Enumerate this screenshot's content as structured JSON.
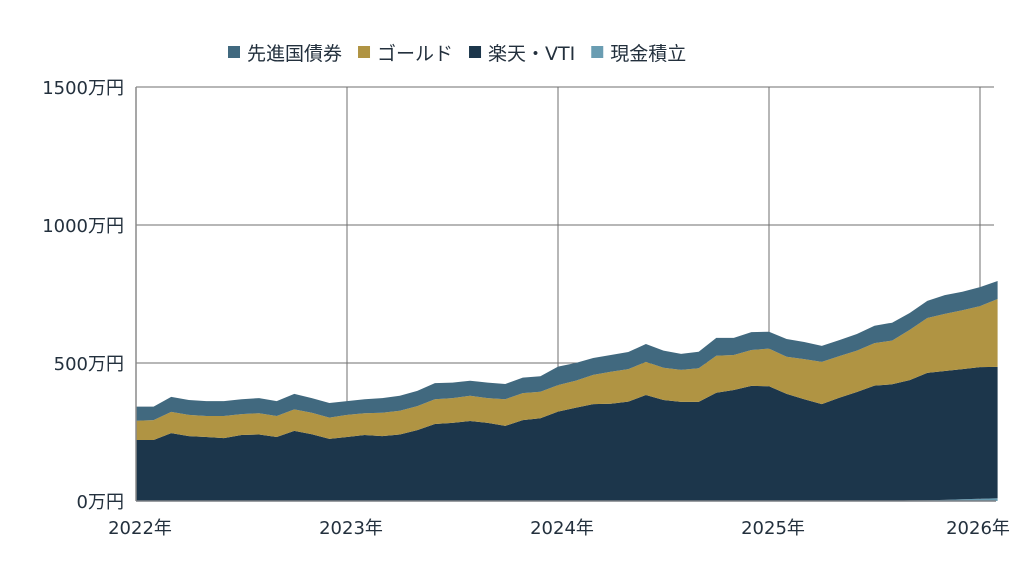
{
  "chart_data": {
    "type": "area",
    "stacked": true,
    "title": "",
    "xlabel": "",
    "ylabel": "",
    "x_ticks": [
      "2022年",
      "2023年",
      "2024年",
      "2025年",
      "2026年"
    ],
    "y_ticks": [
      "0万円",
      "500万円",
      "1000万円",
      "1500万円"
    ],
    "y_tick_values": [
      0,
      500,
      1000,
      1500
    ],
    "ylim": [
      0,
      1500
    ],
    "xlim": [
      "2022-01",
      "2026-01"
    ],
    "grid": true,
    "legend_position": "top",
    "start_month": "2022-01",
    "x_frequency": "monthly",
    "series": [
      {
        "name": "現金積立",
        "color": "#6a9db2",
        "values": [
          1,
          1,
          1,
          1,
          1,
          1,
          1,
          1,
          1,
          1,
          1,
          1,
          1,
          1,
          1,
          1,
          1,
          1,
          1,
          1,
          1,
          1,
          1,
          1,
          1,
          1,
          1,
          1,
          1,
          1,
          1,
          1,
          1,
          1,
          1,
          1,
          1,
          1,
          1,
          1,
          1,
          1,
          1,
          1,
          2,
          3,
          4,
          6,
          8,
          10
        ]
      },
      {
        "name": "楽天・VTI",
        "color": "#1c364b",
        "values": [
          220,
          220,
          245,
          234,
          231,
          227,
          238,
          240,
          231,
          253,
          241,
          224,
          231,
          238,
          234,
          240,
          256,
          278,
          282,
          289,
          282,
          271,
          292,
          299,
          323,
          337,
          350,
          351,
          359,
          383,
          365,
          358,
          358,
          391,
          401,
          416,
          415,
          387,
          368,
          350,
          373,
          394,
          417,
          422,
          436,
          461,
          467,
          472,
          477,
          476
        ]
      },
      {
        "name": "ゴールド",
        "color": "#b09443",
        "values": [
          70,
          72,
          77,
          77,
          76,
          80,
          76,
          77,
          76,
          78,
          78,
          77,
          80,
          79,
          85,
          86,
          87,
          90,
          90,
          91,
          90,
          97,
          98,
          96,
          96,
          98,
          106,
          116,
          118,
          120,
          117,
          116,
          122,
          134,
          127,
          130,
          136,
          135,
          145,
          153,
          151,
          150,
          154,
          158,
          182,
          199,
          207,
          213,
          221,
          246
        ]
      },
      {
        "name": "先進国債券",
        "color": "#41697f",
        "values": [
          51,
          49,
          54,
          54,
          54,
          54,
          54,
          55,
          54,
          56,
          53,
          53,
          50,
          51,
          53,
          54,
          55,
          58,
          56,
          55,
          56,
          55,
          56,
          56,
          67,
          64,
          61,
          61,
          62,
          65,
          62,
          58,
          60,
          65,
          62,
          65,
          61,
          64,
          62,
          58,
          58,
          60,
          63,
          65,
          61,
          62,
          68,
          67,
          69,
          65
        ]
      }
    ],
    "legend_order": [
      "先進国債券",
      "ゴールド",
      "楽天・VTI",
      "現金積立"
    ]
  }
}
